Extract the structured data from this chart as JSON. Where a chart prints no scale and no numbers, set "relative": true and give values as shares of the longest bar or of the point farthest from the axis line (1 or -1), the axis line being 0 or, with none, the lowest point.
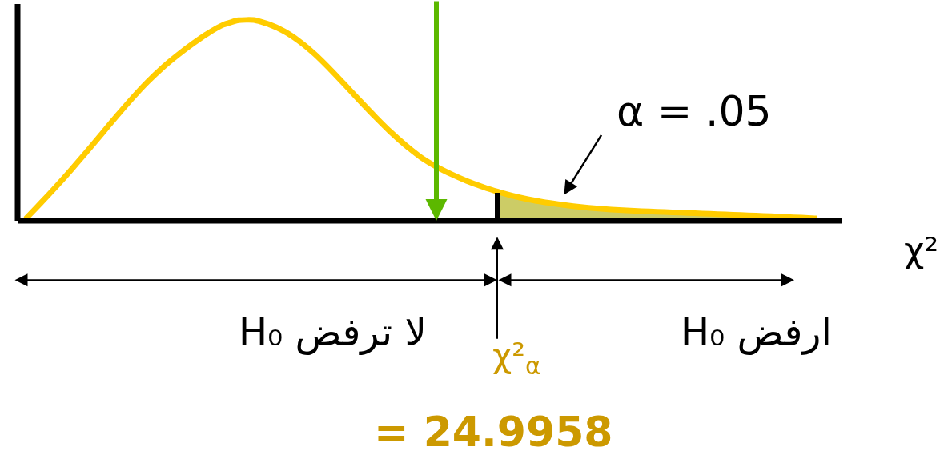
{
  "chart_data": {
    "type": "line",
    "relative": true,
    "marker": "none",
    "categories": [
      null,
      null,
      null,
      null,
      null,
      null,
      null,
      null,
      null,
      null,
      null,
      null,
      null,
      null,
      null,
      null,
      null,
      null,
      null,
      null,
      null,
      null,
      null,
      null,
      null,
      null,
      null,
      null,
      null,
      null,
      null,
      null,
      null,
      null,
      null,
      null,
      null,
      null,
      null,
      null,
      null,
      null,
      null,
      null,
      null,
      null,
      null,
      null,
      null,
      null,
      null,
      null,
      null
    ],
    "series": [
      {
        "type": "area",
        "color": "#cccc66",
        "values": [
          null,
          null,
          null,
          null,
          null,
          null,
          null,
          null,
          null,
          null,
          null,
          null,
          null,
          null,
          null,
          null,
          null,
          null,
          null,
          null,
          null,
          null,
          null,
          null,
          null,
          null,
          null,
          null,
          null,
          null,
          null,
          0.146,
          0.125,
          0.108,
          0.094,
          0.083,
          0.073,
          0.065,
          0.059,
          0.054,
          0.05,
          0.047,
          0.044,
          0.041,
          0.038,
          0.035,
          0.032,
          0.029,
          0.026,
          0.023,
          0.019,
          0.016,
          0.012
        ]
      },
      {
        "color": "#ffcc00",
        "values": [
          0.01,
          0.089,
          0.17,
          0.255,
          0.343,
          0.433,
          0.523,
          0.61,
          0.691,
          0.763,
          0.826,
          0.883,
          0.935,
          0.977,
          0.999,
          1.0,
          0.979,
          0.944,
          0.894,
          0.831,
          0.757,
          0.677,
          0.596,
          0.517,
          0.442,
          0.375,
          0.316,
          0.27,
          0.232,
          0.199,
          0.171,
          0.146,
          0.125,
          0.108,
          0.094,
          0.083,
          0.073,
          0.065,
          0.059,
          0.054,
          0.05,
          0.047,
          0.044,
          0.041,
          0.038,
          0.035,
          0.032,
          0.029,
          0.026,
          0.023,
          0.019,
          0.016,
          0.012
        ]
      }
    ],
    "xlabel": "χ²",
    "annotations": [
      "α = .05",
      "لا ترفض H₀",
      "ارفض H₀",
      "χ²$_{α}$",
      "= 24.9958"
    ]
  }
}
